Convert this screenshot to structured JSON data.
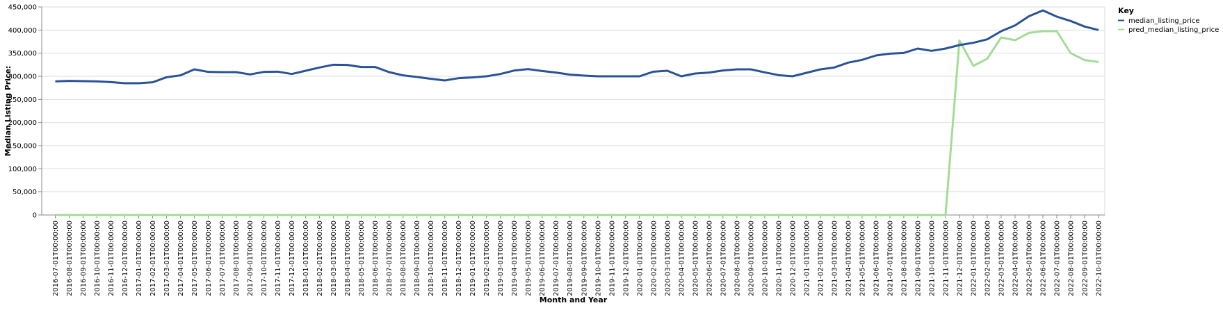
{
  "chart_data": {
    "type": "line",
    "xlabel": "Month and Year",
    "ylabel": "Median Listing Price:",
    "ylim": [
      0,
      450000
    ],
    "yticks": [
      0,
      50000,
      100000,
      150000,
      200000,
      250000,
      300000,
      350000,
      400000,
      450000
    ],
    "ytick_labels": [
      "0",
      "50,000",
      "100,000",
      "150,000",
      "200,000",
      "250,000",
      "300,000",
      "350,000",
      "400,000",
      "450,000"
    ],
    "grid": true,
    "legend": {
      "title": "Key",
      "position": "top-right"
    },
    "x": [
      "2016-07-01T00:00:00",
      "2016-08-01T00:00:00",
      "2016-09-01T00:00:00",
      "2016-10-01T00:00:00",
      "2016-11-01T00:00:00",
      "2016-12-01T00:00:00",
      "2017-01-01T00:00:00",
      "2017-02-01T00:00:00",
      "2017-03-01T00:00:00",
      "2017-04-01T00:00:00",
      "2017-05-01T00:00:00",
      "2017-06-01T00:00:00",
      "2017-07-01T00:00:00",
      "2017-08-01T00:00:00",
      "2017-09-01T00:00:00",
      "2017-10-01T00:00:00",
      "2017-11-01T00:00:00",
      "2017-12-01T00:00:00",
      "2018-01-01T00:00:00",
      "2018-02-01T00:00:00",
      "2018-03-01T00:00:00",
      "2018-04-01T00:00:00",
      "2018-05-01T00:00:00",
      "2018-06-01T00:00:00",
      "2018-07-01T00:00:00",
      "2018-08-01T00:00:00",
      "2018-09-01T00:00:00",
      "2018-10-01T00:00:00",
      "2018-11-01T00:00:00",
      "2018-12-01T00:00:00",
      "2019-01-01T00:00:00",
      "2019-02-01T00:00:00",
      "2019-03-01T00:00:00",
      "2019-04-01T00:00:00",
      "2019-05-01T00:00:00",
      "2019-06-01T00:00:00",
      "2019-07-01T00:00:00",
      "2019-08-01T00:00:00",
      "2019-09-01T00:00:00",
      "2019-10-01T00:00:00",
      "2019-11-01T00:00:00",
      "2019-12-01T00:00:00",
      "2020-01-01T00:00:00",
      "2020-02-01T00:00:00",
      "2020-03-01T00:00:00",
      "2020-04-01T00:00:00",
      "2020-05-01T00:00:00",
      "2020-06-01T00:00:00",
      "2020-07-01T00:00:00",
      "2020-08-01T00:00:00",
      "2020-09-01T00:00:00",
      "2020-10-01T00:00:00",
      "2020-11-01T00:00:00",
      "2020-12-01T00:00:00",
      "2021-01-01T00:00:00",
      "2021-02-01T00:00:00",
      "2021-03-01T00:00:00",
      "2021-04-01T00:00:00",
      "2021-05-01T00:00:00",
      "2021-06-01T00:00:00",
      "2021-07-01T00:00:00",
      "2021-08-01T00:00:00",
      "2021-09-01T00:00:00",
      "2021-10-01T00:00:00",
      "2021-11-01T00:00:00",
      "2021-12-01T00:00:00",
      "2022-01-01T00:00:00",
      "2022-02-01T00:00:00",
      "2022-03-01T00:00:00",
      "2022-04-01T00:00:00",
      "2022-05-01T00:00:00",
      "2022-06-01T00:00:00",
      "2022-07-01T00:00:00",
      "2022-08-01T00:00:00",
      "2022-09-01T00:00:00",
      "2022-10-01T00:00:00"
    ],
    "series": [
      {
        "name": "median_listing_price",
        "color": "#2a5298",
        "values": [
          289000,
          290000,
          289500,
          289000,
          287500,
          285000,
          285000,
          287000,
          298000,
          302000,
          315000,
          309500,
          309000,
          309000,
          304000,
          309500,
          310000,
          305000,
          312000,
          319000,
          325000,
          324500,
          320000,
          320000,
          309000,
          302000,
          298500,
          294500,
          291000,
          296000,
          297500,
          300000,
          305000,
          312500,
          315500,
          311500,
          308000,
          303500,
          301500,
          300000,
          300000,
          300000,
          300000,
          310000,
          312000,
          300000,
          306000,
          308000,
          312500,
          315000,
          315000,
          308500,
          302500,
          300000,
          307500,
          315000,
          319000,
          329500,
          335500,
          345000,
          349000,
          350500,
          360000,
          355000,
          360000,
          367500,
          372500,
          380000,
          397500,
          410000,
          430000,
          442500,
          429000,
          419500,
          407500,
          400000
        ]
      },
      {
        "name": "pred_median_listing_price",
        "color": "#a3dc97",
        "values": [
          0,
          0,
          0,
          0,
          0,
          0,
          0,
          0,
          0,
          0,
          0,
          0,
          0,
          0,
          0,
          0,
          0,
          0,
          0,
          0,
          0,
          0,
          0,
          0,
          0,
          0,
          0,
          0,
          0,
          0,
          0,
          0,
          0,
          0,
          0,
          0,
          0,
          0,
          0,
          0,
          0,
          0,
          0,
          0,
          0,
          0,
          0,
          0,
          0,
          0,
          0,
          0,
          0,
          0,
          0,
          0,
          0,
          0,
          0,
          0,
          0,
          0,
          0,
          0,
          0,
          377500,
          322500,
          338000,
          384000,
          378000,
          394000,
          397500,
          397500,
          350000,
          335000,
          331000
        ]
      }
    ]
  }
}
